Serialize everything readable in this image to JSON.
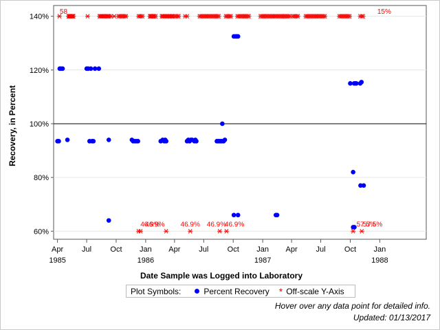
{
  "chart_data": {
    "type": "scatter",
    "title": "",
    "xlabel": "Date Sample was Logged into Laboratory",
    "ylabel": "Recovery, in Percent",
    "ylim": [
      57,
      144
    ],
    "xlim": [
      "1985-03-20",
      "1988-05-25"
    ],
    "reference_line": 100,
    "x_ticks": [
      {
        "date": "1985-04-01",
        "label": "Apr",
        "year": "1985"
      },
      {
        "date": "1985-07-01",
        "label": "Jul",
        "year": ""
      },
      {
        "date": "1985-10-01",
        "label": "Oct",
        "year": ""
      },
      {
        "date": "1986-01-01",
        "label": "Jan",
        "year": "1986"
      },
      {
        "date": "1986-04-01",
        "label": "Apr",
        "year": ""
      },
      {
        "date": "1986-07-01",
        "label": "Jul",
        "year": ""
      },
      {
        "date": "1986-10-01",
        "label": "Oct",
        "year": ""
      },
      {
        "date": "1987-01-01",
        "label": "Jan",
        "year": "1987"
      },
      {
        "date": "1987-04-01",
        "label": "Apr",
        "year": ""
      },
      {
        "date": "1987-07-01",
        "label": "Jul",
        "year": ""
      },
      {
        "date": "1987-10-01",
        "label": "Oct",
        "year": ""
      },
      {
        "date": "1988-01-01",
        "label": "Jan",
        "year": "1988"
      }
    ],
    "y_ticks": [
      {
        "value": 60,
        "label": "60%"
      },
      {
        "value": 80,
        "label": "80%"
      },
      {
        "value": 100,
        "label": "100%"
      },
      {
        "value": 120,
        "label": "120%"
      },
      {
        "value": 140,
        "label": "140%"
      }
    ],
    "series": [
      {
        "name": "Percent Recovery",
        "marker": "circle",
        "color": "#0000ff",
        "points": [
          {
            "x": "1985-04-01",
            "y": 93.5
          },
          {
            "x": "1985-04-05",
            "y": 93.5
          },
          {
            "x": "1985-04-08",
            "y": 120.5
          },
          {
            "x": "1985-04-12",
            "y": 120.5
          },
          {
            "x": "1985-04-17",
            "y": 120.5
          },
          {
            "x": "1985-05-02",
            "y": 94
          },
          {
            "x": "1985-07-01",
            "y": 120.5
          },
          {
            "x": "1985-07-06",
            "y": 120.5
          },
          {
            "x": "1985-07-10",
            "y": 93.5
          },
          {
            "x": "1985-07-14",
            "y": 120.5
          },
          {
            "x": "1985-07-18",
            "y": 93.5
          },
          {
            "x": "1985-07-22",
            "y": 93.5
          },
          {
            "x": "1985-07-27",
            "y": 120.5
          },
          {
            "x": "1985-08-08",
            "y": 120.5
          },
          {
            "x": "1985-09-08",
            "y": 94
          },
          {
            "x": "1985-09-08",
            "y": 64
          },
          {
            "x": "1985-11-19",
            "y": 94
          },
          {
            "x": "1985-11-23",
            "y": 93.5
          },
          {
            "x": "1985-11-28",
            "y": 93.5
          },
          {
            "x": "1985-12-03",
            "y": 93.5
          },
          {
            "x": "1985-12-08",
            "y": 93.5
          },
          {
            "x": "1986-02-17",
            "y": 93.5
          },
          {
            "x": "1986-02-23",
            "y": 94
          },
          {
            "x": "1986-02-28",
            "y": 93.5
          },
          {
            "x": "1986-03-03",
            "y": 94
          },
          {
            "x": "1986-03-06",
            "y": 93.5
          },
          {
            "x": "1986-05-10",
            "y": 93.5
          },
          {
            "x": "1986-05-14",
            "y": 94
          },
          {
            "x": "1986-05-18",
            "y": 93.5
          },
          {
            "x": "1986-05-22",
            "y": 94
          },
          {
            "x": "1986-05-26",
            "y": 94
          },
          {
            "x": "1986-06-02",
            "y": 93.5
          },
          {
            "x": "1986-06-05",
            "y": 94
          },
          {
            "x": "1986-06-08",
            "y": 93.5
          },
          {
            "x": "1986-08-11",
            "y": 93.5
          },
          {
            "x": "1986-08-15",
            "y": 93.5
          },
          {
            "x": "1986-08-19",
            "y": 93.5
          },
          {
            "x": "1986-08-23",
            "y": 93.5
          },
          {
            "x": "1986-08-27",
            "y": 93.5
          },
          {
            "x": "1986-09-01",
            "y": 93.5
          },
          {
            "x": "1986-08-28",
            "y": 100
          },
          {
            "x": "1986-09-05",
            "y": 94
          },
          {
            "x": "1986-10-03",
            "y": 66
          },
          {
            "x": "1986-10-03",
            "y": 132.5
          },
          {
            "x": "1986-10-08",
            "y": 132.5
          },
          {
            "x": "1986-10-12",
            "y": 132.5
          },
          {
            "x": "1986-10-16",
            "y": 132.5
          },
          {
            "x": "1986-10-16",
            "y": 66
          },
          {
            "x": "1987-02-11",
            "y": 66
          },
          {
            "x": "1987-02-15",
            "y": 66
          },
          {
            "x": "1987-10-01",
            "y": 115
          },
          {
            "x": "1987-10-13",
            "y": 115
          },
          {
            "x": "1987-10-17",
            "y": 115
          },
          {
            "x": "1987-10-20",
            "y": 115
          },
          {
            "x": "1987-11-01",
            "y": 115
          },
          {
            "x": "1987-11-05",
            "y": 115.5
          },
          {
            "x": "1987-10-10",
            "y": 82
          },
          {
            "x": "1987-11-02",
            "y": 77
          },
          {
            "x": "1987-11-12",
            "y": 77
          },
          {
            "x": "1987-10-10",
            "y": 61.5
          },
          {
            "x": "1987-10-14",
            "y": 61.5
          }
        ]
      },
      {
        "name": "Off-scale Y-Axis",
        "marker": "asterisk",
        "color": "#ff0000",
        "high_value": 140,
        "low_value": 60,
        "high_dates": [
          "1985-04-07",
          "1985-05-05",
          "1985-05-07",
          "1985-05-09",
          "1985-05-11",
          "1985-05-13",
          "1985-05-15",
          "1985-05-17",
          "1985-05-19",
          "1985-05-21",
          "1985-07-04",
          "1985-08-10",
          "1985-08-13",
          "1985-08-16",
          "1985-08-19",
          "1985-08-22",
          "1985-08-25",
          "1985-08-28",
          "1985-09-01",
          "1985-09-04",
          "1985-09-07",
          "1985-09-10",
          "1985-09-15",
          "1985-09-25",
          "1985-10-08",
          "1985-10-12",
          "1985-10-16",
          "1985-10-20",
          "1985-10-24",
          "1985-10-28",
          "1985-11-01",
          "1985-12-10",
          "1985-12-14",
          "1985-12-18",
          "1985-12-22",
          "1986-01-14",
          "1986-01-16",
          "1986-01-18",
          "1986-01-20",
          "1986-01-22",
          "1986-01-24",
          "1986-01-26",
          "1986-01-28",
          "1986-02-01",
          "1986-02-20",
          "1986-02-23",
          "1986-02-26",
          "1986-03-01",
          "1986-03-04",
          "1986-03-07",
          "1986-03-10",
          "1986-03-13",
          "1986-03-16",
          "1986-03-19",
          "1986-03-22",
          "1986-03-25",
          "1986-03-28",
          "1986-04-02",
          "1986-04-06",
          "1986-04-10",
          "1986-04-14",
          "1986-05-04",
          "1986-05-10",
          "1986-06-18",
          "1986-06-22",
          "1986-06-26",
          "1986-06-30",
          "1986-07-04",
          "1986-07-08",
          "1986-07-12",
          "1986-07-16",
          "1986-07-20",
          "1986-07-24",
          "1986-07-28",
          "1986-08-01",
          "1986-08-05",
          "1986-08-09",
          "1986-08-13",
          "1986-08-17",
          "1986-09-08",
          "1986-09-12",
          "1986-09-16",
          "1986-09-20",
          "1986-09-24",
          "1986-10-14",
          "1986-10-18",
          "1986-10-22",
          "1986-10-26",
          "1986-10-30",
          "1986-11-03",
          "1986-11-07",
          "1986-11-11",
          "1986-11-15",
          "1986-11-19",
          "1986-12-25",
          "1986-12-29",
          "1987-01-02",
          "1987-01-06",
          "1987-01-10",
          "1987-01-14",
          "1987-01-18",
          "1987-01-22",
          "1987-01-26",
          "1987-01-30",
          "1987-02-03",
          "1987-02-07",
          "1987-02-11",
          "1987-02-15",
          "1987-02-19",
          "1987-02-23",
          "1987-02-27",
          "1987-03-03",
          "1987-03-07",
          "1987-03-11",
          "1987-03-15",
          "1987-03-19",
          "1987-03-23",
          "1987-03-27",
          "1987-04-05",
          "1987-04-09",
          "1987-04-13",
          "1987-04-17",
          "1987-04-21",
          "1987-05-15",
          "1987-05-19",
          "1987-05-23",
          "1987-05-27",
          "1987-05-31",
          "1987-06-04",
          "1987-06-08",
          "1987-06-12",
          "1987-06-16",
          "1987-06-20",
          "1987-06-24",
          "1987-06-28",
          "1987-07-02",
          "1987-07-06",
          "1987-07-10",
          "1987-07-14",
          "1987-08-28",
          "1987-09-01",
          "1987-09-05",
          "1987-09-09",
          "1987-09-13",
          "1987-09-17",
          "1987-09-21",
          "1987-09-25",
          "1987-09-29",
          "1987-11-01",
          "1987-11-06",
          "1987-11-10"
        ],
        "low_dates": [
          "1985-12-10",
          "1985-12-16",
          "1986-03-06",
          "1986-05-20",
          "1986-08-20",
          "1986-09-10",
          "1987-10-10",
          "1987-11-06"
        ],
        "labels": [
          {
            "text": "58",
            "x": "1985-04-20",
            "y": 141.7
          },
          {
            "text": "46.9%",
            "x": "1986-01-15",
            "y": 62.5
          },
          {
            "text": "46.9%",
            "x": "1986-01-30",
            "y": 62.5
          },
          {
            "text": "46.9%",
            "x": "1986-05-20",
            "y": 62.5
          },
          {
            "text": "46.9%",
            "x": "1986-08-10",
            "y": 62.5
          },
          {
            "text": "46.9%",
            "x": "1986-10-05",
            "y": 62.5
          },
          {
            "text": "57.5%",
            "x": "1987-11-20",
            "y": 62.5
          },
          {
            "text": "57.5%",
            "x": "1987-12-10",
            "y": 62.5
          },
          {
            "text": "15%",
            "x": "1988-01-15",
            "y": 141.7
          }
        ]
      }
    ],
    "legend": {
      "title": "Plot Symbols:",
      "placement": "bottom-center"
    }
  },
  "legend": {
    "title": "Plot Symbols:",
    "circle_label": "Percent Recovery",
    "asterisk_label": "Off-scale Y-Axis"
  },
  "footer": {
    "hover_note": "Hover over any data point for detailed info.",
    "updated": "Updated: 01/13/2017"
  }
}
